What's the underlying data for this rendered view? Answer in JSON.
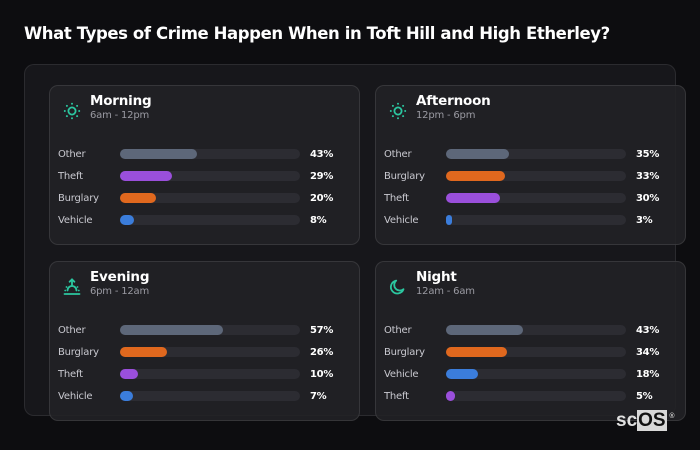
{
  "title": "What Types of Crime Happen When in Toft Hill and High Etherley?",
  "colors": {
    "accent": "#2bc7a0",
    "Other": "#5d6779",
    "Theft": "#9a4fdb",
    "Burglary": "#e0681e",
    "Vehicle": "#3b7ddb"
  },
  "cards": [
    {
      "name": "Morning",
      "range": "6am - 12pm",
      "icon": "sun-icon",
      "rows": [
        {
          "label": "Other",
          "value": 43,
          "pct": "43%"
        },
        {
          "label": "Theft",
          "value": 29,
          "pct": "29%"
        },
        {
          "label": "Burglary",
          "value": 20,
          "pct": "20%"
        },
        {
          "label": "Vehicle",
          "value": 8,
          "pct": "8%"
        }
      ]
    },
    {
      "name": "Afternoon",
      "range": "12pm - 6pm",
      "icon": "sun-icon",
      "rows": [
        {
          "label": "Other",
          "value": 35,
          "pct": "35%"
        },
        {
          "label": "Burglary",
          "value": 33,
          "pct": "33%"
        },
        {
          "label": "Theft",
          "value": 30,
          "pct": "30%"
        },
        {
          "label": "Vehicle",
          "value": 3,
          "pct": "3%"
        }
      ]
    },
    {
      "name": "Evening",
      "range": "6pm - 12am",
      "icon": "sunset-icon",
      "rows": [
        {
          "label": "Other",
          "value": 57,
          "pct": "57%"
        },
        {
          "label": "Burglary",
          "value": 26,
          "pct": "26%"
        },
        {
          "label": "Theft",
          "value": 10,
          "pct": "10%"
        },
        {
          "label": "Vehicle",
          "value": 7,
          "pct": "7%"
        }
      ]
    },
    {
      "name": "Night",
      "range": "12am - 6am",
      "icon": "moon-icon",
      "rows": [
        {
          "label": "Other",
          "value": 43,
          "pct": "43%"
        },
        {
          "label": "Burglary",
          "value": 34,
          "pct": "34%"
        },
        {
          "label": "Vehicle",
          "value": 18,
          "pct": "18%"
        },
        {
          "label": "Theft",
          "value": 5,
          "pct": "5%"
        }
      ]
    }
  ],
  "watermark": {
    "sc": "sc",
    "os": "OS",
    "reg": "®"
  },
  "chart_data": [
    {
      "type": "bar",
      "orientation": "horizontal",
      "title": "Morning",
      "subtitle": "6am - 12pm",
      "categories": [
        "Other",
        "Theft",
        "Burglary",
        "Vehicle"
      ],
      "values": [
        43,
        29,
        20,
        8
      ],
      "unit": "%",
      "xlim": [
        0,
        100
      ]
    },
    {
      "type": "bar",
      "orientation": "horizontal",
      "title": "Afternoon",
      "subtitle": "12pm - 6pm",
      "categories": [
        "Other",
        "Burglary",
        "Theft",
        "Vehicle"
      ],
      "values": [
        35,
        33,
        30,
        3
      ],
      "unit": "%",
      "xlim": [
        0,
        100
      ]
    },
    {
      "type": "bar",
      "orientation": "horizontal",
      "title": "Evening",
      "subtitle": "6pm - 12am",
      "categories": [
        "Other",
        "Burglary",
        "Theft",
        "Vehicle"
      ],
      "values": [
        57,
        26,
        10,
        7
      ],
      "unit": "%",
      "xlim": [
        0,
        100
      ]
    },
    {
      "type": "bar",
      "orientation": "horizontal",
      "title": "Night",
      "subtitle": "12am - 6am",
      "categories": [
        "Other",
        "Burglary",
        "Vehicle",
        "Theft"
      ],
      "values": [
        43,
        34,
        18,
        5
      ],
      "unit": "%",
      "xlim": [
        0,
        100
      ]
    }
  ]
}
